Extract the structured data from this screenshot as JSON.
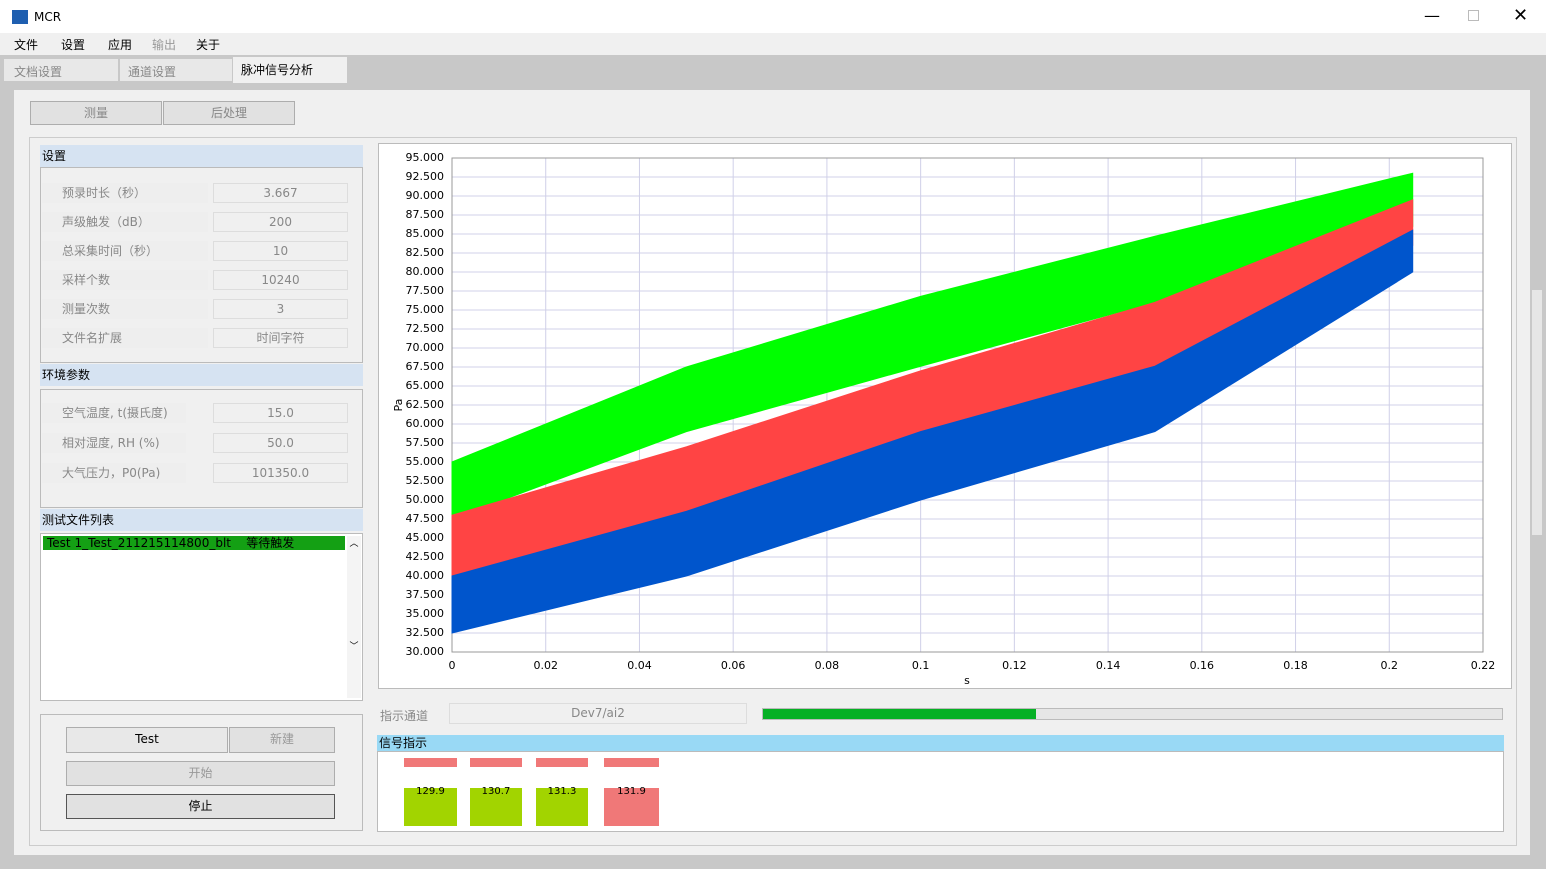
{
  "window": {
    "title": "MCR"
  },
  "menu": [
    "文件",
    "设置",
    "应用",
    "输出",
    "关于"
  ],
  "tabs": [
    "文档设置",
    "通道设置",
    "脉冲信号分析"
  ],
  "subtabs": [
    "测量",
    "后处理"
  ],
  "settings": {
    "title": "设置",
    "fields": [
      {
        "label": "预录时长（秒）",
        "value": "3.667"
      },
      {
        "label": "声级触发（dB）",
        "value": "200"
      },
      {
        "label": "总采集时间（秒）",
        "value": "10"
      },
      {
        "label": "采样个数",
        "value": "10240"
      },
      {
        "label": "测量次数",
        "value": "3"
      },
      {
        "label": "文件名扩展",
        "value": "时间字符"
      }
    ]
  },
  "environment": {
    "title": "环境参数",
    "fields": [
      {
        "label": "空气温度, t(摄氏度)",
        "value": "15.0"
      },
      {
        "label": "相对湿度, RH (%)",
        "value": "50.0"
      },
      {
        "label": "大气压力，P0(Pa)",
        "value": "101350.0"
      }
    ]
  },
  "file_list": {
    "title": "测试文件列表",
    "items": [
      {
        "name": "Test 1_Test_211215114800_blt",
        "status": "等待触发"
      }
    ]
  },
  "buttons": [
    "Test",
    "新建",
    "开始",
    "停止"
  ],
  "channel": {
    "label": "指示通道",
    "value": "Dev7/ai2",
    "progress": 37
  },
  "signal": {
    "title": "信号指示",
    "indicators": [
      {
        "value": 129.9,
        "color": "#a2d400"
      },
      {
        "value": 130.7,
        "color": "#a2d400"
      },
      {
        "value": 131.3,
        "color": "#a2d400"
      },
      {
        "value": 131.9,
        "color": "#f07878"
      }
    ]
  },
  "chart_data": {
    "type": "band",
    "xlabel": "s",
    "ylabel": "Pa",
    "grid": true,
    "x": [
      0,
      0.05,
      0.1,
      0.15,
      0.205
    ],
    "series": [
      {
        "color": "#00ff00",
        "low": [
          47.5,
          59,
          67.6,
          76,
          86
        ],
        "high": [
          55,
          67.5,
          76.8,
          84.7,
          93
        ]
      },
      {
        "color": "#ff4444",
        "low": [
          40,
          48.5,
          57.8,
          67,
          83.5
        ],
        "high": [
          48,
          57,
          67,
          76,
          89.5
        ]
      },
      {
        "color": "#0055cc",
        "low": [
          32.5,
          40,
          50,
          59,
          80
        ],
        "high": [
          40,
          48.5,
          59,
          67.6,
          85.5
        ]
      }
    ],
    "xlim": [
      0,
      0.22
    ],
    "xticks": [
      0,
      0.02,
      0.04,
      0.06,
      0.08,
      0.1,
      0.12,
      0.14,
      0.16,
      0.18,
      0.2,
      0.22
    ],
    "ylim": [
      30,
      95
    ],
    "yticks": [
      {
        "value": 30,
        "label": "30.000"
      },
      {
        "value": 32.5,
        "label": "32.500"
      },
      {
        "value": 35,
        "label": "35.000"
      },
      {
        "value": 37.5,
        "label": "37.500"
      },
      {
        "value": 40,
        "label": "40.000"
      },
      {
        "value": 42.5,
        "label": "42.500"
      },
      {
        "value": 45,
        "label": "45.000"
      },
      {
        "value": 47.5,
        "label": "47.500"
      },
      {
        "value": 50,
        "label": "50.000"
      },
      {
        "value": 52.5,
        "label": "52.500"
      },
      {
        "value": 55,
        "label": "55.000"
      },
      {
        "value": 57.5,
        "label": "57.500"
      },
      {
        "value": 60,
        "label": "60.000"
      },
      {
        "value": 62.5,
        "label": "62.500"
      },
      {
        "value": 65,
        "label": "65.000"
      },
      {
        "value": 67.5,
        "label": "67.500"
      },
      {
        "value": 70,
        "label": "70.000"
      },
      {
        "value": 72.5,
        "label": "72.500"
      },
      {
        "value": 75,
        "label": "75.000"
      },
      {
        "value": 77.5,
        "label": "77.500"
      },
      {
        "value": 80,
        "label": "80.000"
      },
      {
        "value": 82.5,
        "label": "82.500"
      },
      {
        "value": 85,
        "label": "85.000"
      },
      {
        "value": 87.5,
        "label": "87.500"
      },
      {
        "value": 90,
        "label": "90.000"
      },
      {
        "value": 92.5,
        "label": "92.500"
      },
      {
        "value": 95,
        "label": "95.000"
      }
    ]
  }
}
